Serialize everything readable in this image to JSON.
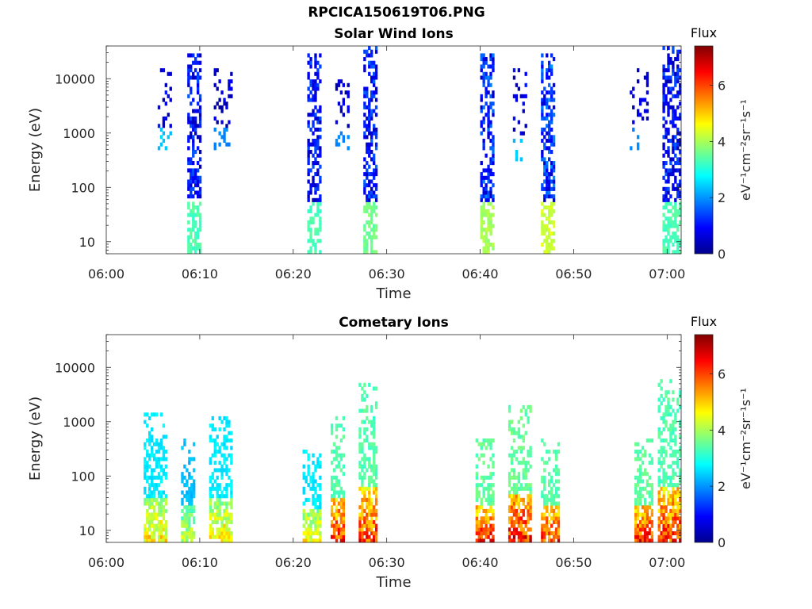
{
  "figure": {
    "file_title": "RPCICA150619T06.PNG"
  },
  "chart_data": [
    {
      "type": "heatmap",
      "title": "Solar Wind Ions",
      "xlabel": "Time",
      "ylabel": "Energy (eV)",
      "x_ticks": [
        "06:00",
        "06:10",
        "06:20",
        "06:30",
        "06:40",
        "06:50",
        "07:00"
      ],
      "xlim_minutes_after_0600": [
        0,
        61.5
      ],
      "y_ticks": [
        10,
        100,
        1000,
        10000
      ],
      "y_tick_labels": [
        "10",
        "100",
        "1000",
        "10000"
      ],
      "ylim_ev": [
        6,
        40000
      ],
      "y_scale": "log",
      "colorbar": {
        "title": "Flux",
        "label": "eV⁻¹cm⁻²sr⁻¹s⁻¹",
        "range": [
          0,
          7.4
        ],
        "ticks": [
          0,
          2,
          4,
          6
        ],
        "colormap": "jet"
      },
      "bursts": [
        {
          "start": "06:08:40",
          "end": "06:10:10",
          "emin_ev": 6,
          "emax_ev": 30000,
          "peak_flux": 3.5,
          "character": "dense column, low-flux at high energy, higher near 10 eV"
        },
        {
          "start": "06:05:30",
          "end": "06:07:00",
          "emin_ev": 500,
          "emax_ev": 15000,
          "peak_flux": 2.5,
          "character": "sparse scatter"
        },
        {
          "start": "06:11:30",
          "end": "06:13:30",
          "emin_ev": 500,
          "emax_ev": 15000,
          "peak_flux": 2.0,
          "character": "sparse scatter"
        },
        {
          "start": "06:21:30",
          "end": "06:23:00",
          "emin_ev": 6,
          "emax_ev": 30000,
          "peak_flux": 3.5,
          "character": "dense column"
        },
        {
          "start": "06:24:30",
          "end": "06:26:00",
          "emin_ev": 500,
          "emax_ev": 10000,
          "peak_flux": 2.0,
          "character": "sparse scatter"
        },
        {
          "start": "06:27:30",
          "end": "06:29:00",
          "emin_ev": 6,
          "emax_ev": 40000,
          "peak_flux": 3.8,
          "character": "dense column"
        },
        {
          "start": "06:40:00",
          "end": "06:41:30",
          "emin_ev": 6,
          "emax_ev": 30000,
          "peak_flux": 4.2,
          "character": "dense column"
        },
        {
          "start": "06:43:30",
          "end": "06:45:00",
          "emin_ev": 300,
          "emax_ev": 15000,
          "peak_flux": 2.5,
          "character": "sparse scatter"
        },
        {
          "start": "06:46:30",
          "end": "06:48:00",
          "emin_ev": 6,
          "emax_ev": 30000,
          "peak_flux": 4.5,
          "character": "dense column"
        },
        {
          "start": "06:56:00",
          "end": "06:58:00",
          "emin_ev": 500,
          "emax_ev": 15000,
          "peak_flux": 2.0,
          "character": "sparse scatter"
        },
        {
          "start": "06:59:30",
          "end": "07:01:20",
          "emin_ev": 6,
          "emax_ev": 40000,
          "peak_flux": 3.5,
          "character": "dense column"
        }
      ]
    },
    {
      "type": "heatmap",
      "title": "Cometary Ions",
      "xlabel": "Time",
      "ylabel": "Energy (eV)",
      "x_ticks": [
        "06:00",
        "06:10",
        "06:20",
        "06:30",
        "06:40",
        "06:50",
        "07:00"
      ],
      "xlim_minutes_after_0600": [
        0,
        61.5
      ],
      "y_ticks": [
        10,
        100,
        1000,
        10000
      ],
      "y_tick_labels": [
        "10",
        "100",
        "1000",
        "10000"
      ],
      "ylim_ev": [
        6,
        40000
      ],
      "y_scale": "log",
      "colorbar": {
        "title": "Flux",
        "label": "eV⁻¹cm⁻²sr⁻¹s⁻¹",
        "range": [
          0,
          7.4
        ],
        "ticks": [
          0,
          2,
          4,
          6
        ],
        "colormap": "jet"
      },
      "bursts": [
        {
          "start": "06:04:00",
          "end": "06:06:30",
          "emin_ev": 6,
          "emax_ev": 1500,
          "peak_flux": 5.5,
          "character": "hot core below 50 eV"
        },
        {
          "start": "06:08:00",
          "end": "06:09:30",
          "emin_ev": 6,
          "emax_ev": 500,
          "peak_flux": 4.8,
          "character": "moderate"
        },
        {
          "start": "06:11:00",
          "end": "06:13:30",
          "emin_ev": 6,
          "emax_ev": 1300,
          "peak_flux": 5.5,
          "character": "hot core below 50 eV"
        },
        {
          "start": "06:21:00",
          "end": "06:23:00",
          "emin_ev": 6,
          "emax_ev": 300,
          "peak_flux": 5.5,
          "character": "moderate"
        },
        {
          "start": "06:24:00",
          "end": "06:25:30",
          "emin_ev": 6,
          "emax_ev": 1500,
          "peak_flux": 7.0,
          "character": "hot core 10-50 eV"
        },
        {
          "start": "06:27:00",
          "end": "06:29:00",
          "emin_ev": 6,
          "emax_ev": 5000,
          "peak_flux": 7.0,
          "character": "hot core 10-50 eV"
        },
        {
          "start": "06:39:30",
          "end": "06:41:30",
          "emin_ev": 6,
          "emax_ev": 500,
          "peak_flux": 7.2,
          "character": "hot core below 40 eV"
        },
        {
          "start": "06:43:00",
          "end": "06:45:30",
          "emin_ev": 6,
          "emax_ev": 2000,
          "peak_flux": 7.3,
          "character": "hot core below 40 eV"
        },
        {
          "start": "06:46:30",
          "end": "06:48:30",
          "emin_ev": 6,
          "emax_ev": 500,
          "peak_flux": 7.0,
          "character": "hot core below 30 eV"
        },
        {
          "start": "06:56:30",
          "end": "06:58:30",
          "emin_ev": 6,
          "emax_ev": 500,
          "peak_flux": 7.2,
          "character": "hot core below 40 eV"
        },
        {
          "start": "06:59:00",
          "end": "07:01:20",
          "emin_ev": 6,
          "emax_ev": 6000,
          "peak_flux": 7.0,
          "character": "hot core below 40 eV"
        }
      ]
    }
  ]
}
